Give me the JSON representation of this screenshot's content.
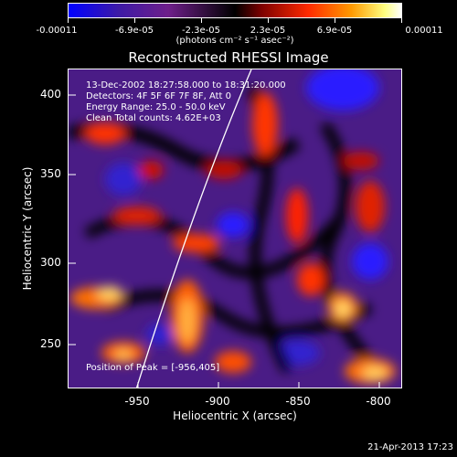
{
  "colorbar": {
    "labels": [
      "-0.00011",
      "-6.9e-05",
      "-2.3e-05",
      "2.3e-05",
      "6.9e-05",
      "0.00011"
    ],
    "units": "(photons cm⁻² s⁻¹ asec⁻²)"
  },
  "title": "Reconstructed RHESSI Image",
  "info": {
    "time_range": "13-Dec-2002 18:27:58.000 to 18:31:20.000",
    "detectors": "Detectors: 4F 5F 6F 7F 8F, Att 0",
    "energy": "Energy Range: 25.0 - 50.0 keV",
    "clean": "Clean    Total counts: 4.62E+03"
  },
  "peak_text": "Position of Peak = [-956,405]",
  "axes": {
    "xlabel": "Heliocentric X (arcsec)",
    "ylabel": "Heliocentric Y (arcsec)",
    "xticks": [
      "-950",
      "-900",
      "-850",
      "-800"
    ],
    "yticks": [
      "400",
      "350",
      "300",
      "250"
    ]
  },
  "footer": "21-Apr-2013 17:23",
  "colors": {
    "background": "#000000",
    "limb_line": "#ffffff"
  }
}
